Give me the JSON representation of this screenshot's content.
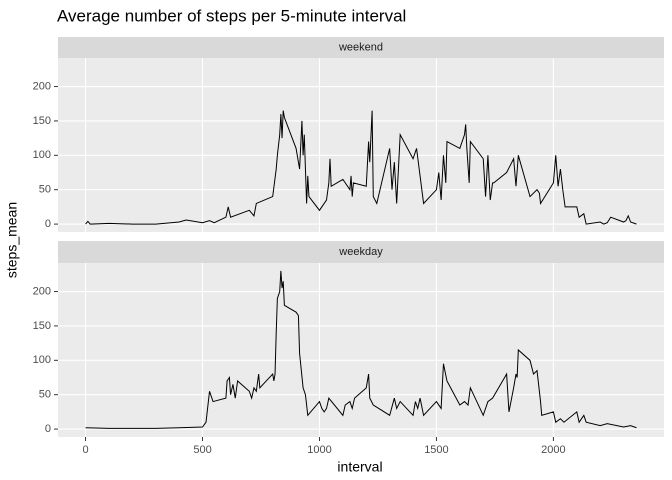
{
  "title": "Average number of steps per 5-minute interval",
  "x_label": "interval",
  "y_label": "steps_mean",
  "chart_data": [
    {
      "type": "line",
      "strip": "weekend",
      "color": "#000000",
      "grid": true,
      "xlim": [
        -117.75,
        2472.75
      ],
      "xticks": [
        0,
        500,
        1000,
        1500,
        2000
      ],
      "ylim": [
        -11.5,
        241.5
      ],
      "yticks": [
        0,
        50,
        100,
        150,
        200
      ],
      "x": [
        0,
        10,
        20,
        100,
        200,
        300,
        400,
        430,
        500,
        530,
        550,
        600,
        610,
        620,
        700,
        720,
        730,
        800,
        815,
        820,
        830,
        835,
        840,
        845,
        850,
        900,
        915,
        925,
        930,
        935,
        945,
        950,
        955,
        1000,
        1030,
        1040,
        1045,
        1050,
        1100,
        1130,
        1135,
        1140,
        1145,
        1200,
        1210,
        1215,
        1225,
        1230,
        1245,
        1300,
        1310,
        1320,
        1330,
        1345,
        1400,
        1415,
        1430,
        1445,
        1500,
        1510,
        1520,
        1530,
        1540,
        1545,
        1600,
        1620,
        1625,
        1630,
        1640,
        1645,
        1700,
        1710,
        1720,
        1730,
        1740,
        1745,
        1800,
        1830,
        1840,
        1850,
        1900,
        1930,
        1940,
        1945,
        2000,
        2010,
        2020,
        2030,
        2040,
        2050,
        2100,
        2110,
        2130,
        2140,
        2200,
        2215,
        2230,
        2245,
        2300,
        2310,
        2320,
        2330,
        2355
      ],
      "values": [
        0,
        4,
        0,
        1,
        0,
        0,
        3,
        6,
        2,
        5,
        2,
        10,
        25,
        10,
        20,
        12,
        30,
        40,
        80,
        100,
        130,
        160,
        125,
        165,
        155,
        110,
        80,
        150,
        100,
        130,
        30,
        70,
        40,
        20,
        35,
        60,
        95,
        55,
        65,
        50,
        70,
        40,
        60,
        55,
        120,
        90,
        165,
        40,
        30,
        110,
        50,
        90,
        30,
        130,
        95,
        110,
        70,
        30,
        50,
        75,
        35,
        100,
        60,
        120,
        110,
        130,
        145,
        110,
        60,
        120,
        95,
        40,
        100,
        35,
        60,
        60,
        75,
        95,
        55,
        100,
        40,
        50,
        45,
        30,
        60,
        100,
        55,
        80,
        50,
        25,
        25,
        10,
        15,
        0,
        3,
        0,
        2,
        10,
        3,
        5,
        12,
        3,
        0
      ]
    },
    {
      "type": "line",
      "strip": "weekday",
      "color": "#000000",
      "grid": true,
      "xlim": [
        -117.75,
        2472.75
      ],
      "xticks": [
        0,
        500,
        1000,
        1500,
        2000
      ],
      "ylim": [
        -11.5,
        241.5
      ],
      "yticks": [
        0,
        50,
        100,
        150,
        200
      ],
      "x": [
        0,
        100,
        200,
        300,
        400,
        500,
        515,
        530,
        545,
        600,
        605,
        615,
        620,
        630,
        640,
        650,
        700,
        710,
        720,
        730,
        740,
        745,
        800,
        805,
        810,
        815,
        820,
        830,
        835,
        840,
        845,
        850,
        900,
        910,
        915,
        930,
        940,
        950,
        1000,
        1010,
        1020,
        1030,
        1040,
        1100,
        1110,
        1130,
        1140,
        1150,
        1200,
        1210,
        1215,
        1230,
        1300,
        1320,
        1330,
        1345,
        1400,
        1410,
        1420,
        1430,
        1445,
        1500,
        1520,
        1530,
        1545,
        1600,
        1620,
        1635,
        1645,
        1700,
        1720,
        1740,
        1800,
        1810,
        1830,
        1840,
        1845,
        1850,
        1900,
        1915,
        1930,
        1945,
        1950,
        2000,
        2010,
        2030,
        2045,
        2100,
        2110,
        2130,
        2140,
        2200,
        2230,
        2300,
        2330,
        2355
      ],
      "values": [
        2,
        1,
        1,
        1,
        2,
        3,
        10,
        55,
        40,
        45,
        70,
        75,
        50,
        65,
        45,
        70,
        55,
        45,
        60,
        55,
        80,
        60,
        80,
        70,
        80,
        140,
        190,
        200,
        230,
        205,
        215,
        180,
        170,
        165,
        110,
        60,
        50,
        20,
        40,
        30,
        25,
        30,
        45,
        20,
        35,
        40,
        30,
        45,
        60,
        80,
        45,
        35,
        20,
        45,
        30,
        40,
        20,
        40,
        30,
        45,
        20,
        40,
        30,
        95,
        70,
        35,
        40,
        35,
        60,
        20,
        40,
        45,
        80,
        25,
        60,
        80,
        75,
        115,
        100,
        80,
        85,
        40,
        20,
        25,
        10,
        15,
        10,
        25,
        10,
        20,
        10,
        5,
        8,
        3,
        5,
        2
      ]
    }
  ]
}
